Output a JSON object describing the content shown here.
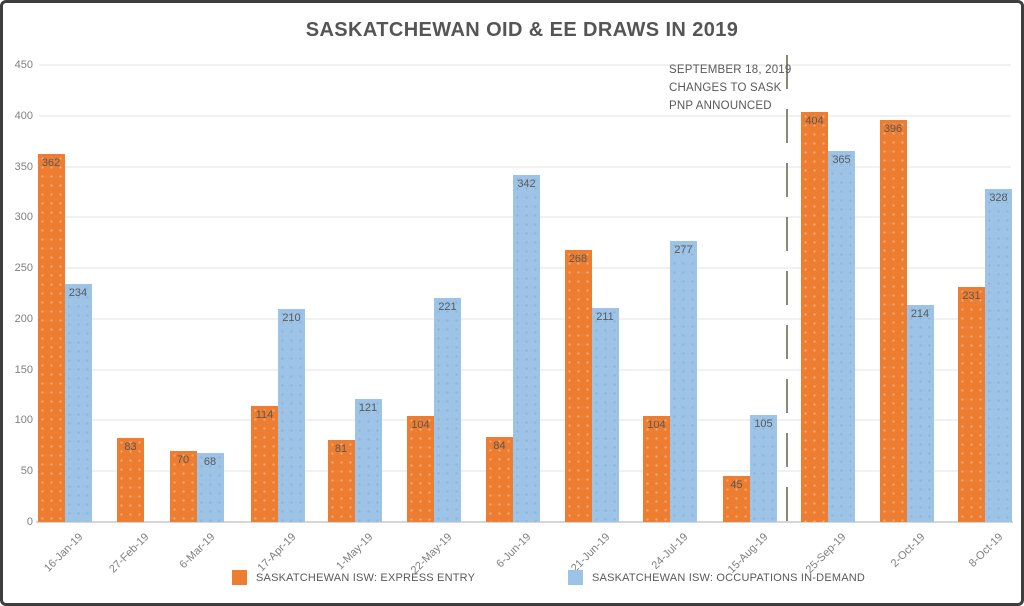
{
  "title": "SASKATCHEWAN OID & EE DRAWS IN 2019",
  "annotation": {
    "lines": [
      "SEPTEMBER 18, 2019",
      "CHANGES TO SASK",
      "PNP ANNOUNCED"
    ]
  },
  "chart_data": {
    "type": "bar",
    "title": "SASKATCHEWAN OID & EE DRAWS IN 2019",
    "categories": [
      "16-Jan-19",
      "27-Feb-19",
      "6-Mar-19",
      "17-Apr-19",
      "1-May-19",
      "22-May-19",
      "6-Jun-19",
      "21-Jun-19",
      "24-Jul-19",
      "15-Aug-19",
      "25-Sep-19",
      "2-Oct-19",
      "8-Oct-19"
    ],
    "series": [
      {
        "name": "SASKATCHEWAN ISW: EXPRESS ENTRY",
        "color": "#ED7D31",
        "values": [
          362,
          83,
          70,
          114,
          81,
          104,
          84,
          268,
          104,
          45,
          404,
          396,
          231
        ]
      },
      {
        "name": "SASKATCHEWAN ISW: OCCUPATIONS IN-DEMAND",
        "color": "#9DC3E6",
        "values": [
          234,
          null,
          68,
          210,
          121,
          221,
          342,
          211,
          277,
          105,
          365,
          214,
          328
        ]
      }
    ],
    "ylim": [
      0,
      450
    ],
    "yticks": [
      0,
      50,
      100,
      150,
      200,
      250,
      300,
      350,
      400,
      450
    ],
    "grid": true,
    "legend_position": "bottom",
    "bar_value_labels": "inside-top",
    "annotation": "SEPTEMBER 18, 2019 CHANGES TO SASK PNP ANNOUNCED",
    "annotation_divider_between": [
      "15-Aug-19",
      "25-Sep-19"
    ]
  },
  "colors": {
    "express_entry": "#ED7D31",
    "occupations_in_demand": "#9DC3E6",
    "divider_line": "#8A8A74",
    "text_primary": "#595959",
    "text_axis": "#7F7F7F",
    "gridline": "#F1F1F1",
    "frame_border": "#3E3E3E"
  }
}
